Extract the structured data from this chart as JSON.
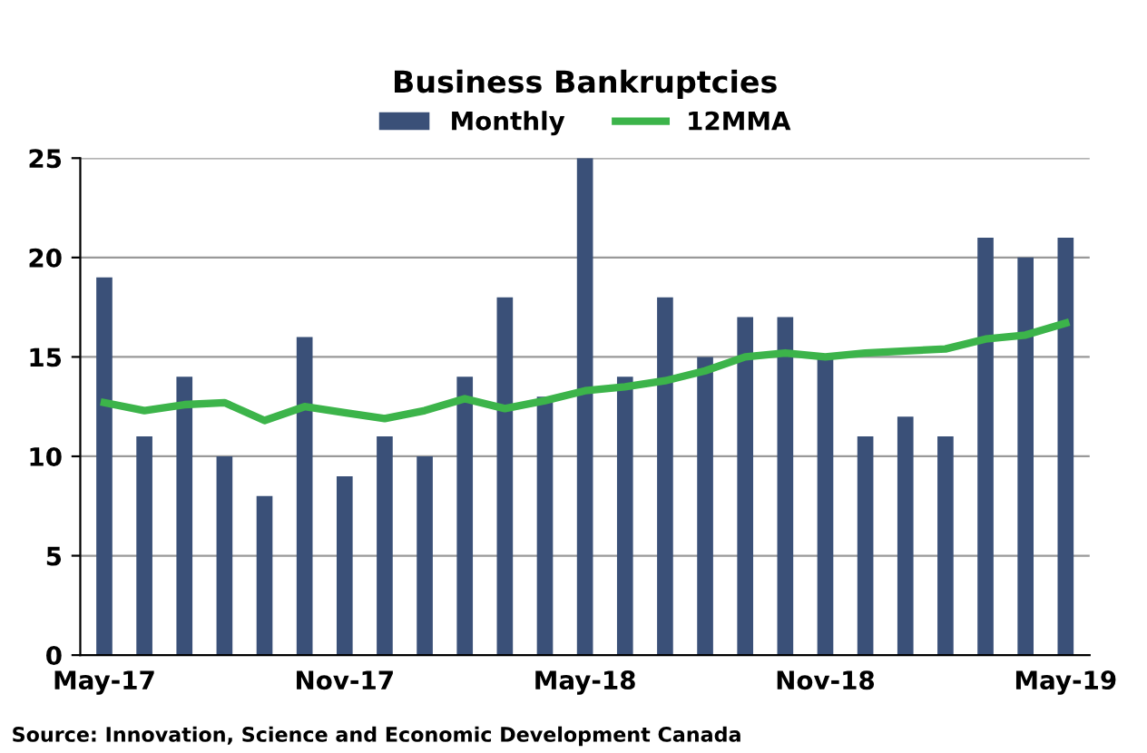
{
  "chart_data": {
    "type": "bar",
    "title": "Business Bankruptcies",
    "categories": [
      "May-17",
      null,
      null,
      null,
      null,
      null,
      "Nov-17",
      null,
      null,
      null,
      null,
      null,
      "May-18",
      null,
      null,
      null,
      null,
      null,
      "Nov-18",
      null,
      null,
      null,
      null,
      null,
      "May-19"
    ],
    "series": [
      {
        "name": "Monthly",
        "color": "#3a5078",
        "values": [
          19,
          11,
          14,
          10,
          8,
          16,
          9,
          11,
          10,
          14,
          18,
          13,
          25,
          14,
          18,
          15,
          17,
          17,
          15,
          11,
          12,
          11,
          21,
          20,
          21
        ]
      },
      {
        "name": "12MMA",
        "type": "line",
        "color": "#3cb44a",
        "values": [
          12.7,
          12.3,
          12.6,
          12.7,
          11.8,
          12.5,
          12.2,
          11.9,
          12.3,
          12.9,
          12.4,
          12.8,
          13.3,
          13.5,
          13.8,
          14.3,
          15.0,
          15.2,
          15.0,
          15.2,
          15.3,
          15.4,
          15.9,
          16.1,
          16.7
        ]
      }
    ],
    "ylim": [
      0,
      25
    ],
    "yticks": [
      0,
      5,
      10,
      15,
      20,
      25
    ],
    "grid": "y",
    "legend": "top",
    "marker": "none",
    "line_style": "solid",
    "annotations": [
      "Source: Innovation, Science and Economic Development Canada"
    ]
  }
}
